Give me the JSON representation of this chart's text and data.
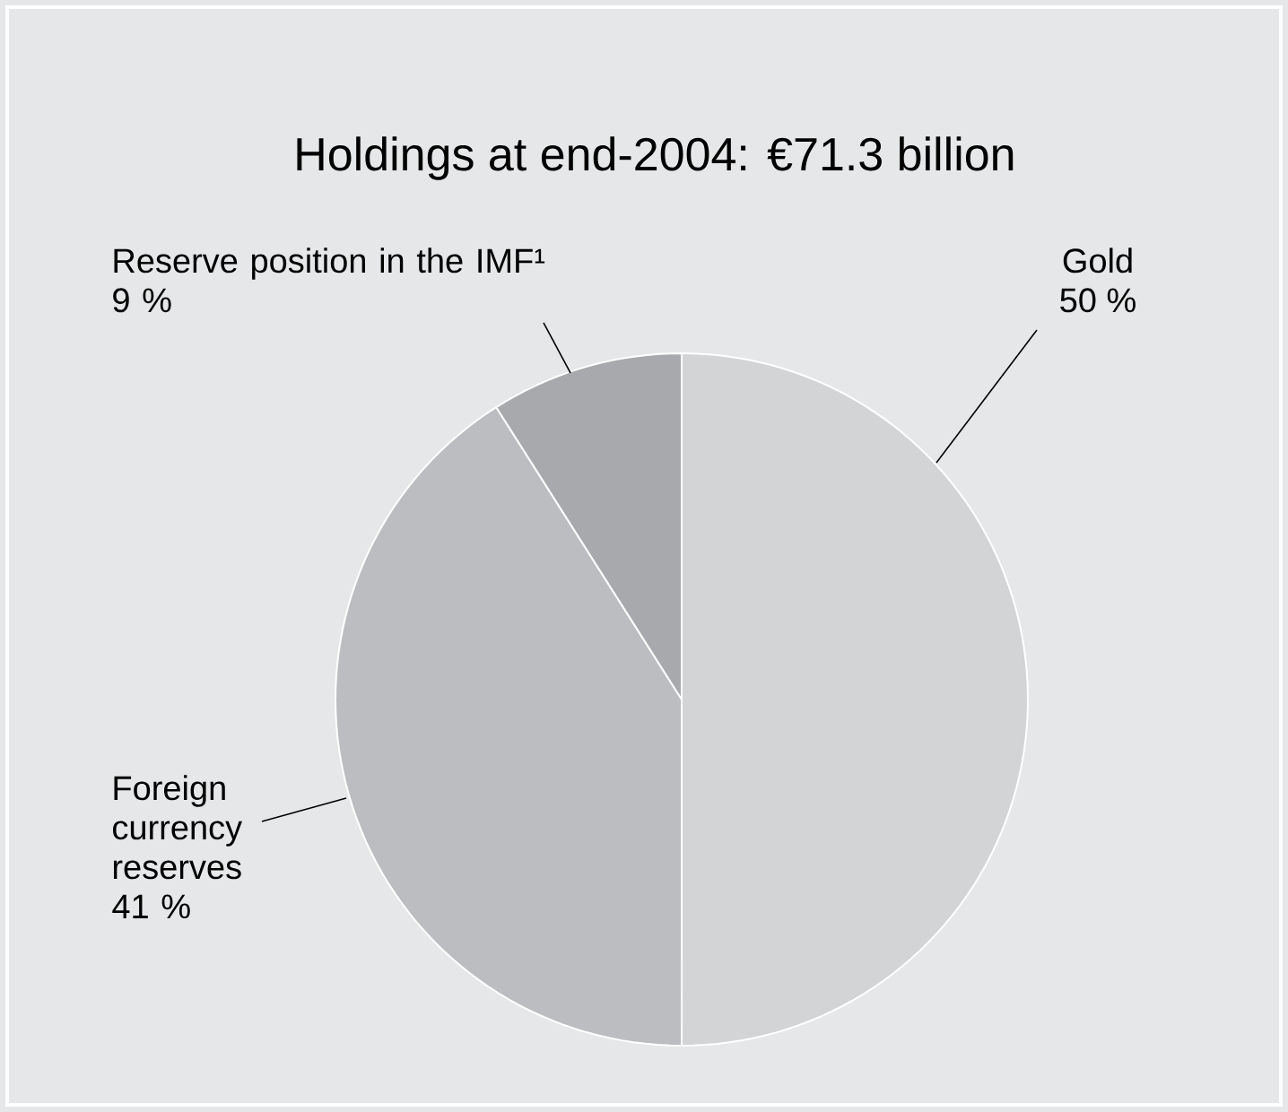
{
  "chart_data": {
    "type": "pie",
    "title": "Holdings at end-2004: €71.3 billion",
    "categories": [
      "Gold",
      "Foreign currency reserves",
      "Reserve position in the IMF¹"
    ],
    "values": [
      50,
      41,
      9
    ],
    "value_labels": [
      "50 %",
      "41 %",
      "9 %"
    ],
    "colors": [
      "#d3d4d5",
      "#bcbdc0",
      "#a8a9ac"
    ]
  }
}
